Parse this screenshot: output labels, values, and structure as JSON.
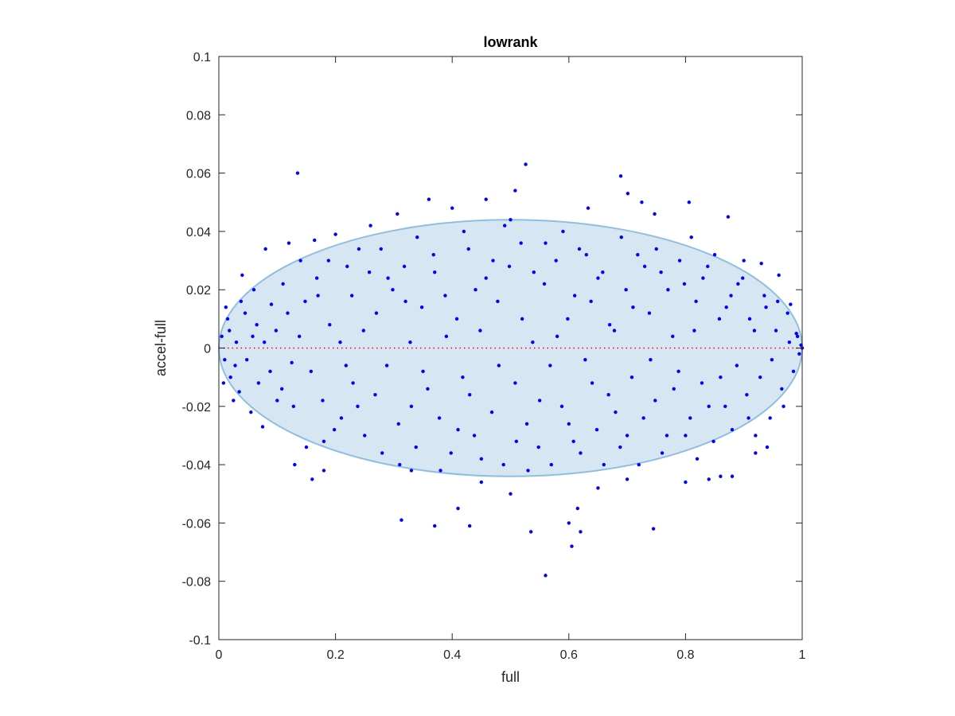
{
  "chart_data": {
    "type": "scatter",
    "title": "lowrank",
    "xlabel": "full",
    "ylabel": "accel-full",
    "xlim": [
      0,
      1
    ],
    "ylim": [
      -0.1,
      0.1
    ],
    "xticks": [
      0,
      0.2,
      0.4,
      0.6,
      0.8,
      1
    ],
    "xtick_labels": [
      "0",
      "0.2",
      "0.4",
      "0.6",
      "0.8",
      "1"
    ],
    "yticks": [
      -0.1,
      -0.08,
      -0.06,
      -0.04,
      -0.02,
      0,
      0.02,
      0.04,
      0.06,
      0.08,
      0.1
    ],
    "ytick_labels": [
      "-0.1",
      "-0.08",
      "-0.06",
      "-0.04",
      "-0.02",
      "0",
      "0.02",
      "0.04",
      "0.06",
      "0.08",
      "0.1"
    ],
    "grid": false,
    "colors": {
      "points": "#0000ff",
      "ellipse_fill": "#d6e6f3",
      "ellipse_stroke": "#8fbfe0",
      "zero_line": "#ff0000",
      "axes": "#262626"
    },
    "reference_line": {
      "y": 0,
      "style": "dotted"
    },
    "ellipse": {
      "center": [
        0.5,
        0.0
      ],
      "semi_axis_x": 0.5,
      "semi_axis_y": 0.044
    },
    "series": [
      {
        "points": [
          [
            0.135,
            0.06
          ],
          [
            0.526,
            0.063
          ],
          [
            0.689,
            0.059
          ],
          [
            0.701,
            0.053
          ],
          [
            0.508,
            0.054
          ],
          [
            0.36,
            0.051
          ],
          [
            0.458,
            0.051
          ],
          [
            0.633,
            0.048
          ],
          [
            0.725,
            0.05
          ],
          [
            0.806,
            0.05
          ],
          [
            0.4,
            0.048
          ],
          [
            0.306,
            0.046
          ],
          [
            0.747,
            0.046
          ],
          [
            0.873,
            0.045
          ],
          [
            0.5,
            0.044
          ],
          [
            0.81,
            0.038
          ],
          [
            0.12,
            0.036
          ],
          [
            0.164,
            0.037
          ],
          [
            0.2,
            0.039
          ],
          [
            0.26,
            0.042
          ],
          [
            0.08,
            0.034
          ],
          [
            0.04,
            0.025
          ],
          [
            0.06,
            0.02
          ],
          [
            0.9,
            0.03
          ],
          [
            0.93,
            0.029
          ],
          [
            0.96,
            0.025
          ],
          [
            0.98,
            0.015
          ],
          [
            0.99,
            0.005
          ],
          [
            0.995,
            -0.002
          ],
          [
            1.0,
            0.0
          ],
          [
            0.005,
            0.004
          ],
          [
            0.01,
            -0.004
          ],
          [
            0.015,
            0.01
          ],
          [
            0.02,
            -0.01
          ],
          [
            0.03,
            0.002
          ],
          [
            0.035,
            -0.015
          ],
          [
            0.045,
            0.012
          ],
          [
            0.055,
            -0.022
          ],
          [
            0.065,
            0.008
          ],
          [
            0.075,
            -0.027
          ],
          [
            0.09,
            0.015
          ],
          [
            0.1,
            -0.018
          ],
          [
            0.11,
            0.022
          ],
          [
            0.125,
            -0.005
          ],
          [
            0.14,
            0.03
          ],
          [
            0.15,
            -0.034
          ],
          [
            0.17,
            0.018
          ],
          [
            0.18,
            -0.032
          ],
          [
            0.19,
            0.008
          ],
          [
            0.21,
            -0.024
          ],
          [
            0.22,
            0.028
          ],
          [
            0.23,
            -0.012
          ],
          [
            0.24,
            0.034
          ],
          [
            0.25,
            -0.03
          ],
          [
            0.27,
            0.012
          ],
          [
            0.28,
            -0.036
          ],
          [
            0.29,
            0.024
          ],
          [
            0.31,
            -0.04
          ],
          [
            0.32,
            0.016
          ],
          [
            0.33,
            -0.02
          ],
          [
            0.34,
            0.038
          ],
          [
            0.35,
            -0.008
          ],
          [
            0.37,
            0.026
          ],
          [
            0.38,
            -0.042
          ],
          [
            0.39,
            0.004
          ],
          [
            0.41,
            -0.028
          ],
          [
            0.42,
            0.04
          ],
          [
            0.43,
            -0.016
          ],
          [
            0.44,
            0.02
          ],
          [
            0.45,
            -0.038
          ],
          [
            0.47,
            0.03
          ],
          [
            0.48,
            -0.006
          ],
          [
            0.49,
            0.042
          ],
          [
            0.51,
            -0.032
          ],
          [
            0.52,
            0.01
          ],
          [
            0.53,
            -0.042
          ],
          [
            0.54,
            0.026
          ],
          [
            0.55,
            -0.018
          ],
          [
            0.56,
            0.036
          ],
          [
            0.57,
            -0.04
          ],
          [
            0.58,
            0.004
          ],
          [
            0.59,
            0.04
          ],
          [
            0.6,
            -0.026
          ],
          [
            0.61,
            0.018
          ],
          [
            0.62,
            -0.036
          ],
          [
            0.63,
            0.032
          ],
          [
            0.64,
            -0.012
          ],
          [
            0.65,
            0.024
          ],
          [
            0.66,
            -0.04
          ],
          [
            0.67,
            0.008
          ],
          [
            0.68,
            -0.022
          ],
          [
            0.69,
            0.038
          ],
          [
            0.7,
            -0.03
          ],
          [
            0.71,
            0.014
          ],
          [
            0.72,
            -0.04
          ],
          [
            0.73,
            0.028
          ],
          [
            0.74,
            -0.004
          ],
          [
            0.75,
            0.034
          ],
          [
            0.76,
            -0.036
          ],
          [
            0.77,
            0.02
          ],
          [
            0.78,
            -0.014
          ],
          [
            0.79,
            0.03
          ],
          [
            0.8,
            -0.03
          ],
          [
            0.815,
            0.006
          ],
          [
            0.82,
            -0.038
          ],
          [
            0.83,
            0.024
          ],
          [
            0.84,
            -0.02
          ],
          [
            0.85,
            0.032
          ],
          [
            0.86,
            -0.01
          ],
          [
            0.87,
            0.014
          ],
          [
            0.88,
            -0.028
          ],
          [
            0.89,
            0.022
          ],
          [
            0.905,
            -0.016
          ],
          [
            0.91,
            0.01
          ],
          [
            0.92,
            -0.03
          ],
          [
            0.935,
            0.018
          ],
          [
            0.945,
            -0.024
          ],
          [
            0.955,
            0.006
          ],
          [
            0.965,
            -0.014
          ],
          [
            0.975,
            0.012
          ],
          [
            0.985,
            -0.008
          ],
          [
            0.992,
            0.004
          ],
          [
            0.998,
            0.001
          ],
          [
            0.16,
            -0.045
          ],
          [
            0.13,
            -0.04
          ],
          [
            0.18,
            -0.042
          ],
          [
            0.37,
            -0.061
          ],
          [
            0.41,
            -0.055
          ],
          [
            0.43,
            -0.061
          ],
          [
            0.313,
            -0.059
          ],
          [
            0.535,
            -0.063
          ],
          [
            0.56,
            -0.078
          ],
          [
            0.6,
            -0.06
          ],
          [
            0.605,
            -0.068
          ],
          [
            0.615,
            -0.055
          ],
          [
            0.62,
            -0.063
          ],
          [
            0.745,
            -0.062
          ],
          [
            0.5,
            -0.05
          ],
          [
            0.84,
            -0.045
          ],
          [
            0.86,
            -0.044
          ],
          [
            0.88,
            -0.044
          ],
          [
            0.92,
            -0.036
          ],
          [
            0.94,
            -0.034
          ],
          [
            0.65,
            -0.048
          ],
          [
            0.7,
            -0.045
          ],
          [
            0.8,
            -0.046
          ],
          [
            0.45,
            -0.046
          ],
          [
            0.33,
            -0.042
          ],
          [
            0.025,
            -0.018
          ],
          [
            0.012,
            0.014
          ],
          [
            0.008,
            -0.012
          ],
          [
            0.018,
            0.006
          ],
          [
            0.028,
            -0.006
          ],
          [
            0.038,
            0.016
          ],
          [
            0.048,
            -0.004
          ],
          [
            0.058,
            0.004
          ],
          [
            0.068,
            -0.012
          ],
          [
            0.078,
            0.002
          ],
          [
            0.088,
            -0.008
          ],
          [
            0.098,
            0.006
          ],
          [
            0.108,
            -0.014
          ],
          [
            0.118,
            0.012
          ],
          [
            0.128,
            -0.02
          ],
          [
            0.138,
            0.004
          ],
          [
            0.148,
            0.016
          ],
          [
            0.158,
            -0.008
          ],
          [
            0.168,
            0.024
          ],
          [
            0.178,
            -0.018
          ],
          [
            0.188,
            0.03
          ],
          [
            0.198,
            -0.028
          ],
          [
            0.208,
            0.002
          ],
          [
            0.218,
            -0.006
          ],
          [
            0.228,
            0.018
          ],
          [
            0.238,
            -0.02
          ],
          [
            0.248,
            0.006
          ],
          [
            0.258,
            0.026
          ],
          [
            0.268,
            -0.016
          ],
          [
            0.278,
            0.034
          ],
          [
            0.288,
            -0.006
          ],
          [
            0.298,
            0.02
          ],
          [
            0.308,
            -0.026
          ],
          [
            0.318,
            0.028
          ],
          [
            0.328,
            0.002
          ],
          [
            0.338,
            -0.034
          ],
          [
            0.348,
            0.014
          ],
          [
            0.358,
            -0.014
          ],
          [
            0.368,
            0.032
          ],
          [
            0.378,
            -0.024
          ],
          [
            0.388,
            0.018
          ],
          [
            0.398,
            -0.036
          ],
          [
            0.408,
            0.01
          ],
          [
            0.418,
            -0.01
          ],
          [
            0.428,
            0.034
          ],
          [
            0.438,
            -0.03
          ],
          [
            0.448,
            0.006
          ],
          [
            0.458,
            0.024
          ],
          [
            0.468,
            -0.022
          ],
          [
            0.478,
            0.016
          ],
          [
            0.488,
            -0.04
          ],
          [
            0.498,
            0.028
          ],
          [
            0.508,
            -0.012
          ],
          [
            0.518,
            0.036
          ],
          [
            0.528,
            -0.026
          ],
          [
            0.538,
            0.002
          ],
          [
            0.548,
            -0.034
          ],
          [
            0.558,
            0.022
          ],
          [
            0.568,
            -0.006
          ],
          [
            0.578,
            0.03
          ],
          [
            0.588,
            -0.02
          ],
          [
            0.598,
            0.01
          ],
          [
            0.608,
            -0.032
          ],
          [
            0.618,
            0.034
          ],
          [
            0.628,
            -0.004
          ],
          [
            0.638,
            0.016
          ],
          [
            0.648,
            -0.028
          ],
          [
            0.658,
            0.026
          ],
          [
            0.668,
            -0.016
          ],
          [
            0.678,
            0.006
          ],
          [
            0.688,
            -0.034
          ],
          [
            0.698,
            0.02
          ],
          [
            0.708,
            -0.01
          ],
          [
            0.718,
            0.032
          ],
          [
            0.728,
            -0.024
          ],
          [
            0.738,
            0.012
          ],
          [
            0.748,
            -0.018
          ],
          [
            0.758,
            0.026
          ],
          [
            0.768,
            -0.03
          ],
          [
            0.778,
            0.004
          ],
          [
            0.788,
            -0.008
          ],
          [
            0.798,
            0.022
          ],
          [
            0.808,
            -0.024
          ],
          [
            0.818,
            0.016
          ],
          [
            0.828,
            -0.012
          ],
          [
            0.838,
            0.028
          ],
          [
            0.848,
            -0.032
          ],
          [
            0.858,
            0.01
          ],
          [
            0.868,
            -0.02
          ],
          [
            0.878,
            0.018
          ],
          [
            0.888,
            -0.006
          ],
          [
            0.898,
            0.024
          ],
          [
            0.908,
            -0.024
          ],
          [
            0.918,
            0.006
          ],
          [
            0.928,
            -0.01
          ],
          [
            0.938,
            0.014
          ],
          [
            0.948,
            -0.004
          ],
          [
            0.958,
            0.016
          ],
          [
            0.968,
            -0.02
          ],
          [
            0.978,
            0.002
          ]
        ]
      }
    ]
  }
}
